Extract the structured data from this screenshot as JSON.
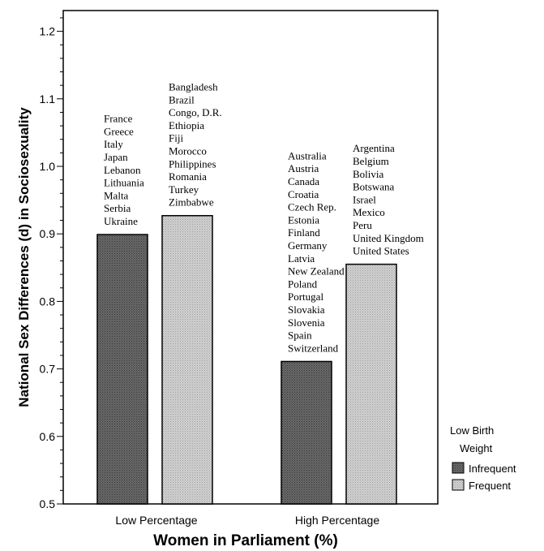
{
  "chart_data": {
    "type": "bar",
    "xlabel": "Women in Parliament (%)",
    "ylabel": "National Sex Differences (d) in Sociosexuality",
    "ylim": [
      0.5,
      1.25
    ],
    "yticks": [
      "0.5",
      "0.6",
      "0.7",
      "0.8",
      "0.9",
      "1.0",
      "1.1",
      "1.2"
    ],
    "grid": false,
    "legend_position": "right",
    "legend": {
      "title_line1": "Low Birth",
      "title_line2": "Weight",
      "entries": [
        "Infrequent",
        "Frequent"
      ]
    },
    "categories": [
      "Low Percentage",
      "High Percentage"
    ],
    "series": [
      {
        "name": "Infrequent",
        "color": "#555555",
        "values": [
          0.899,
          0.711
        ],
        "countries": [
          [
            "France",
            "Greece",
            "Italy",
            "Japan",
            "Lebanon",
            "Lithuania",
            "Malta",
            "Serbia",
            "Ukraine"
          ],
          [
            "Australia",
            "Austria",
            "Canada",
            "Croatia",
            "Czech Rep.",
            "Estonia",
            "Finland",
            "Germany",
            "Latvia",
            "New Zealand",
            "Poland",
            "Portugal",
            "Slovakia",
            "Slovenia",
            "Spain",
            "Switzerland"
          ]
        ]
      },
      {
        "name": "Frequent",
        "color": "#c8c8c8",
        "values": [
          0.927,
          0.855
        ],
        "countries": [
          [
            "Bangladesh",
            "Brazil",
            "Congo, D.R.",
            "Ethiopia",
            "Fiji",
            "Morocco",
            "Philippines",
            "Romania",
            "Turkey",
            "Zimbabwe"
          ],
          [
            "Argentina",
            "Belgium",
            "Bolivia",
            "Botswana",
            "Israel",
            "Mexico",
            "Peru",
            "United Kingdom",
            "United States"
          ]
        ]
      }
    ]
  }
}
